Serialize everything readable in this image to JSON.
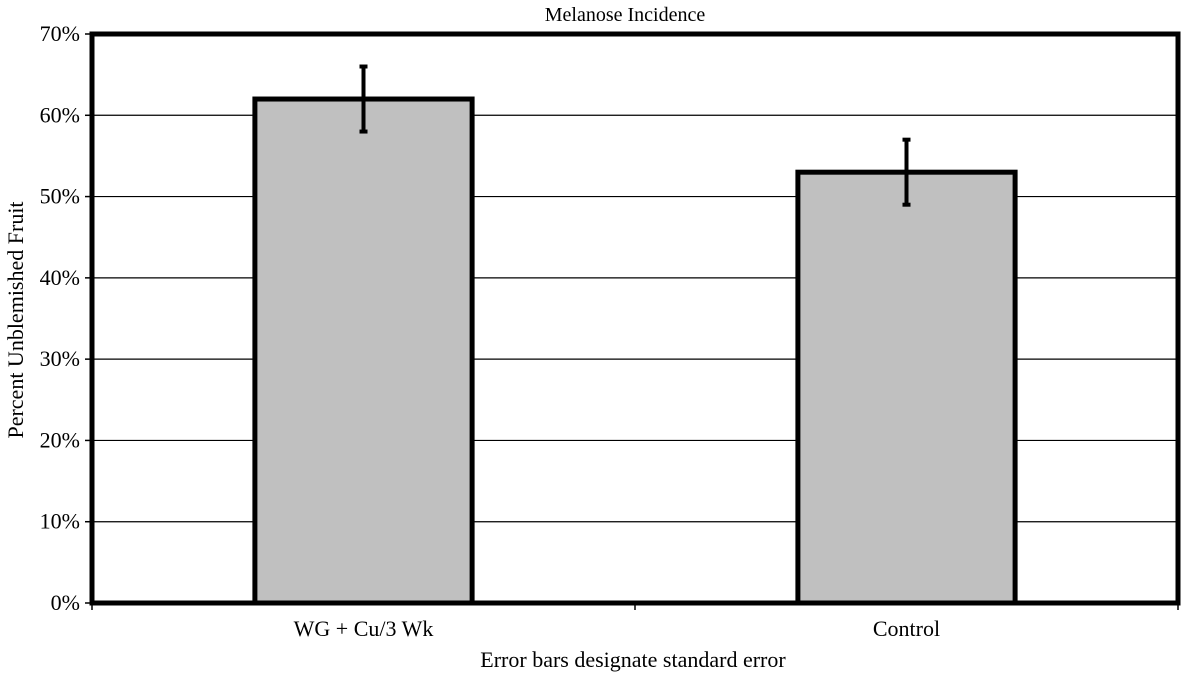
{
  "chart_data": {
    "type": "bar",
    "title": "Melanose Incidence",
    "xlabel": "Error bars designate standard error",
    "ylabel": "Percent Unblemished Fruit",
    "categories": [
      "WG + Cu/3 Wk",
      "Control"
    ],
    "values": [
      62.0,
      53.0
    ],
    "error": [
      4.0,
      4.0
    ],
    "ylim": [
      0,
      70
    ],
    "yticks": [
      0,
      10,
      20,
      30,
      40,
      50,
      60,
      70
    ],
    "ytick_labels": [
      "0%",
      "10%",
      "20%",
      "30%",
      "40%",
      "50%",
      "60%",
      "70%"
    ],
    "grid": true,
    "legend": "none",
    "colors": {
      "bar_fill": "#c0c0c0",
      "bar_stroke": "#000000",
      "grid": "#000000"
    }
  }
}
